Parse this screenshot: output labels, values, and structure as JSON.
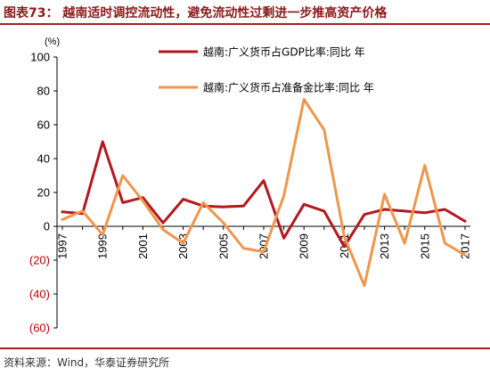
{
  "header": {
    "title": "图表73： 越南适时调控流动性，避免流动性过剩进一步推高资产价格"
  },
  "footer": {
    "source": "资料来源：Wind，华泰证券研究所"
  },
  "colors": {
    "series_gdp": "#b2191f",
    "series_reserve": "#f0964a",
    "accent": "#a32020",
    "negative_label": "#c00000"
  },
  "chart_data": {
    "type": "line",
    "unit_label": "(%)",
    "ylim": [
      -60,
      100
    ],
    "yticks": [
      {
        "value": 100,
        "label": "100"
      },
      {
        "value": 80,
        "label": "80"
      },
      {
        "value": 60,
        "label": "60"
      },
      {
        "value": 40,
        "label": "40"
      },
      {
        "value": 20,
        "label": "20"
      },
      {
        "value": 0,
        "label": "0"
      },
      {
        "value": -20,
        "label": "(20)"
      },
      {
        "value": -40,
        "label": "(40)"
      },
      {
        "value": -60,
        "label": "(60)"
      }
    ],
    "x": [
      1997,
      1998,
      1999,
      2000,
      2001,
      2002,
      2003,
      2004,
      2005,
      2006,
      2007,
      2008,
      2009,
      2010,
      2011,
      2012,
      2013,
      2014,
      2015,
      2016,
      2017
    ],
    "xtick_labels": [
      "1997",
      "1999",
      "2001",
      "2003",
      "2005",
      "2007",
      "2009",
      "2011",
      "2013",
      "2015",
      "2017"
    ],
    "legend_position": "top-center",
    "grid": false,
    "series": [
      {
        "name": "越南:广义货币占GDP比率:同比  年",
        "values": [
          8.5,
          7.5,
          50,
          14,
          17,
          2,
          16,
          12,
          11.5,
          12,
          27,
          -7,
          13,
          9,
          -12,
          7,
          10,
          9,
          8,
          10,
          3
        ]
      },
      {
        "name": "越南:广义货币占准备金比率:同比  年",
        "values": [
          4,
          9,
          -5,
          30,
          15,
          -2,
          -10,
          14,
          2,
          -13,
          -15,
          18,
          75,
          57,
          -6,
          -35,
          19,
          -10,
          36,
          -10,
          -17
        ]
      }
    ]
  }
}
